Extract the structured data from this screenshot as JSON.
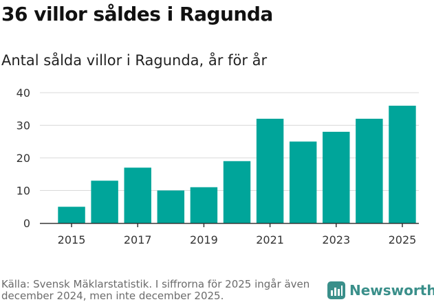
{
  "header": {
    "title": "36 villor såldes i Ragunda",
    "subtitle": "Antal sålda villor i Ragunda, år för år"
  },
  "footer": {
    "source": "Källa: Svensk Mäklarstatistik. I siffrorna för 2025 ingår även december 2024, men inte december 2025.",
    "brand": "Newsworthy",
    "brand_icon": "newsworthy-logo-icon"
  },
  "colors": {
    "bar": "#00a59a",
    "grid": "#d9d9d9",
    "brand": "#3a8f8a"
  },
  "chart_data": {
    "type": "bar",
    "title": "Antal sålda villor i Ragunda, år för år",
    "xlabel": "",
    "ylabel": "",
    "categories": [
      "2015",
      "2016",
      "2017",
      "2018",
      "2019",
      "2020",
      "2021",
      "2022",
      "2023",
      "2024",
      "2025"
    ],
    "values": [
      5,
      13,
      17,
      10,
      11,
      19,
      32,
      25,
      28,
      32,
      36
    ],
    "x_tick_labels": [
      "2015",
      "2017",
      "2019",
      "2021",
      "2023",
      "2025"
    ],
    "y_ticks": [
      0,
      10,
      20,
      30,
      40
    ],
    "ylim": [
      0,
      40
    ],
    "grid": true,
    "legend": "none"
  }
}
